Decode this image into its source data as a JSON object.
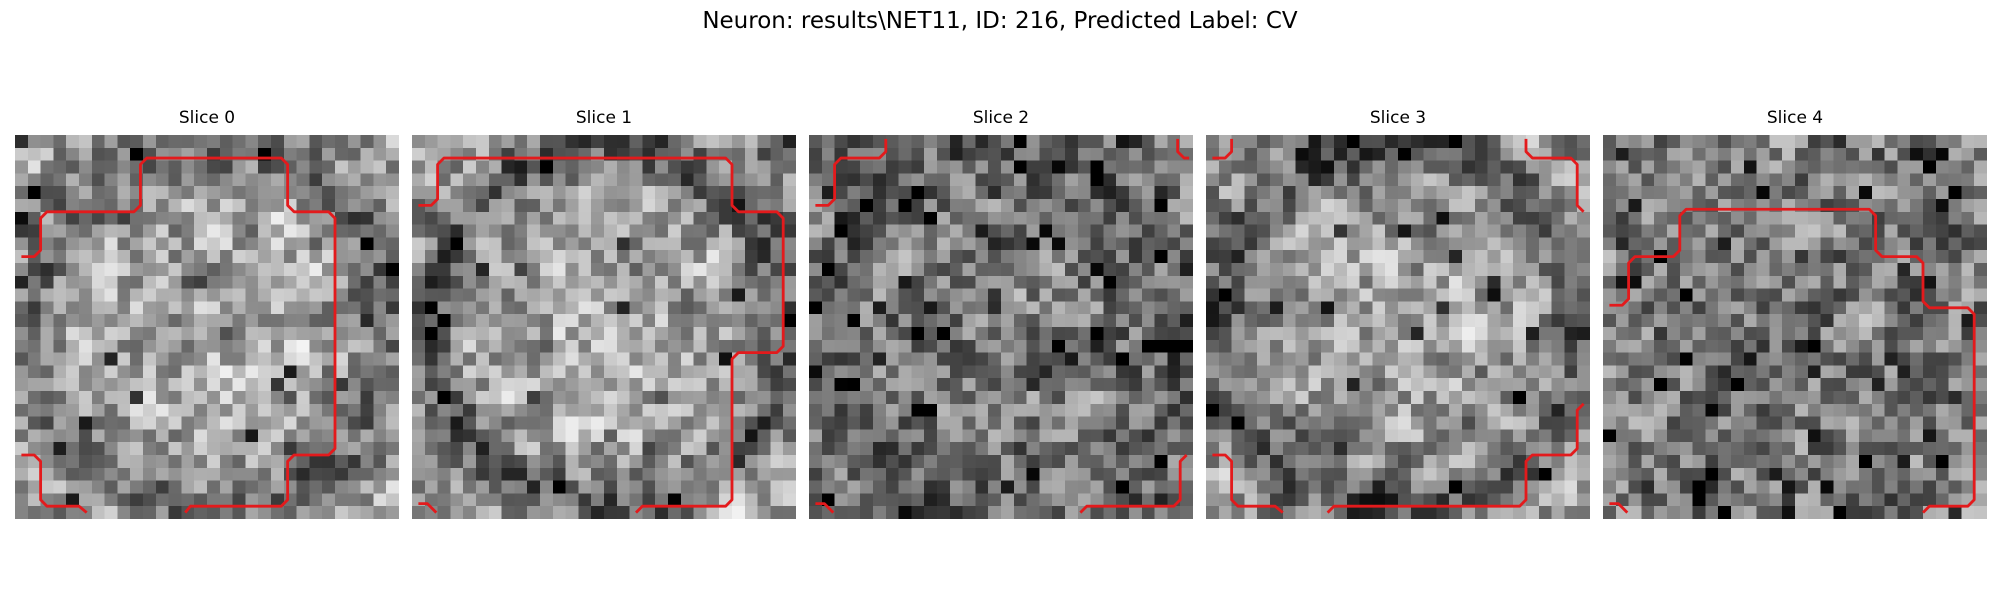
{
  "figure": {
    "title": "Neuron: results\\NET11, ID: 216, Predicted Label: CV",
    "grid_cells": 30,
    "colormap": "gray",
    "contour_color": "#e31a1c",
    "panels": [
      {
        "title": "Slice 0",
        "seed": 11,
        "base": 0.64,
        "ring": -0.22,
        "dark_spots": 0.05,
        "contours": [
          "M0.5,9.5 L1.5,9.5 L2,9 L2,6.5 L2.5,6 L9.3,6 L9.8,5.5 L9.8,2.3 L10.3,1.8 L20.8,1.8 L21.3,2.3 L21.3,5.5 L21.8,6 L24.5,6 L25,6.5 L25,24.5 L24.5,25 L21.8,25 L21.3,25.5 L21.3,28.5 L20.8,29 L13.7,29 L13.3,29.5",
          "M0.5,25 L1.5,25 L2,25.5 L2,28.5 L2.5,29 L5,29 L5.6,29.5"
        ]
      },
      {
        "title": "Slice 1",
        "seed": 23,
        "base": 0.66,
        "ring": -0.32,
        "dark_spots": 0.04,
        "contours": [
          "M0.5,5.5 L1.5,5.5 L2,5 L2,2.3 L2.5,1.8 L24.5,1.8 L25,2.3 L25,5.5 L25.5,6 L28.5,6 L29,6.5 L29,16.5 L28.5,17 L25.5,17 L25,17.5 L25,28.5 L24.5,29 L18,29 L17.5,29.5",
          "M0.5,28.8 L1.2,28.8 L1.9,29.5"
        ]
      },
      {
        "title": "Slice 2",
        "seed": 37,
        "base": 0.48,
        "ring": -0.12,
        "dark_spots": 0.09,
        "contours": [
          "M0.5,5.5 L1.5,5.5 L2,5 L2,2.3 L2.5,1.8 L5.5,1.8 L6,1.3 L6,0.3",
          "M28.8,0.3 L28.8,1.3 L29.3,1.8 L29.7,1.8",
          "M0.5,28.8 L1.2,28.8 L1.9,29.5",
          "M21.2,29.5 L21.7,29 L28.5,29 L29,28.5 L29,25.5 L29.5,25"
        ]
      },
      {
        "title": "Slice 3",
        "seed": 49,
        "base": 0.6,
        "ring": -0.26,
        "dark_spots": 0.05,
        "contours": [
          "M0.5,1.8 L1.5,1.8 L2,1.3 L2,0.3",
          "M25,0.3 L25,1.3 L25.5,1.8 L28.5,1.8 L29,2.3 L29,5.5 L29.5,6",
          "M0.5,25 L1.5,25 L2,25.5 L2,28.5 L2.5,29 L5.4,29 L6,29.5",
          "M9.5,29.5 L10,29 L24.5,29 L25,28.5 L25,25.5 L25.5,25 L28.5,25 L29,24.5 L29,21.5 L29.5,21"
        ]
      },
      {
        "title": "Slice 4",
        "seed": 61,
        "base": 0.48,
        "ring": 0.0,
        "dark_spots": 0.1,
        "contours": [
          "M0.5,13.3 L1.5,13.3 L2,12.8 L2,10 L2.5,9.5 L5.5,9.5 L6,9 L6,6.3 L6.5,5.8 L20.8,5.8 L21.3,6.3 L21.3,9 L21.8,9.5 L24.5,9.5 L25,10 L25,13 L25.5,13.5 L28.5,13.5 L29,14 L29,28.5 L28.5,29 L25.5,29 L25,29.5",
          "M0.5,28.8 L1.2,28.8 L1.9,29.5"
        ]
      }
    ]
  }
}
